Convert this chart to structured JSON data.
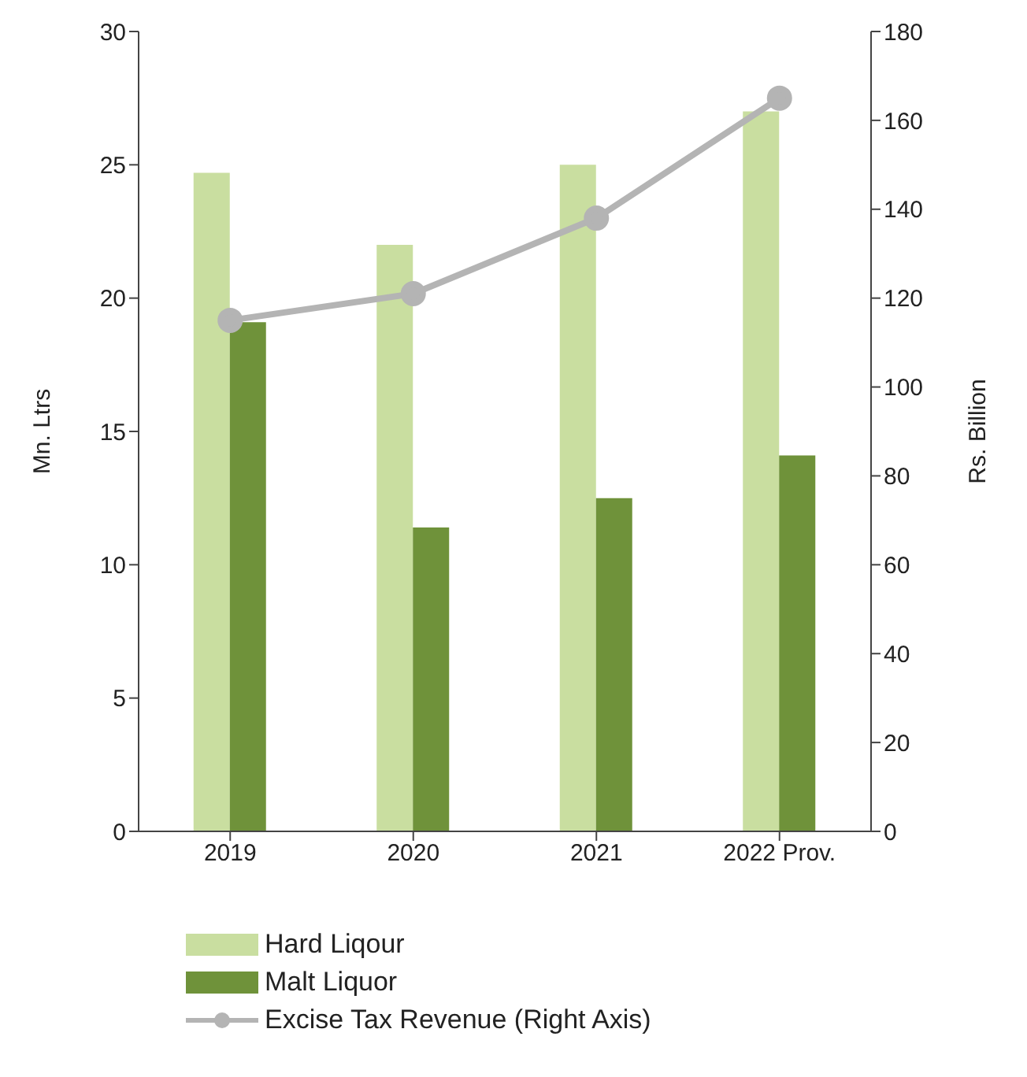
{
  "chart_data": {
    "type": "bar",
    "categories": [
      "2019",
      "2020",
      "2021",
      "2022 Prov."
    ],
    "series": [
      {
        "name": "Hard Liqour",
        "color": "#c9dea0",
        "values": [
          24.7,
          22.0,
          25.0,
          27.0
        ]
      },
      {
        "name": "Malt Liquor",
        "color": "#6f923a",
        "values": [
          19.1,
          11.4,
          12.5,
          14.1
        ]
      },
      {
        "name": "Excise Tax Revenue (Right Axis)",
        "type": "line",
        "axis": "y2",
        "color": "#b4b4b4",
        "values": [
          115,
          121,
          138,
          165
        ]
      }
    ],
    "ylabel": "Mn. Ltrs",
    "y2label": "Rs. Billion",
    "ylim": [
      0,
      30
    ],
    "yticks": [
      0,
      5,
      10,
      15,
      20,
      25,
      30
    ],
    "y2lim": [
      0,
      180
    ],
    "y2ticks": [
      0,
      20,
      40,
      60,
      80,
      100,
      120,
      140,
      160,
      180
    ],
    "marker": "circle",
    "grid": false,
    "legend": "bottom"
  }
}
